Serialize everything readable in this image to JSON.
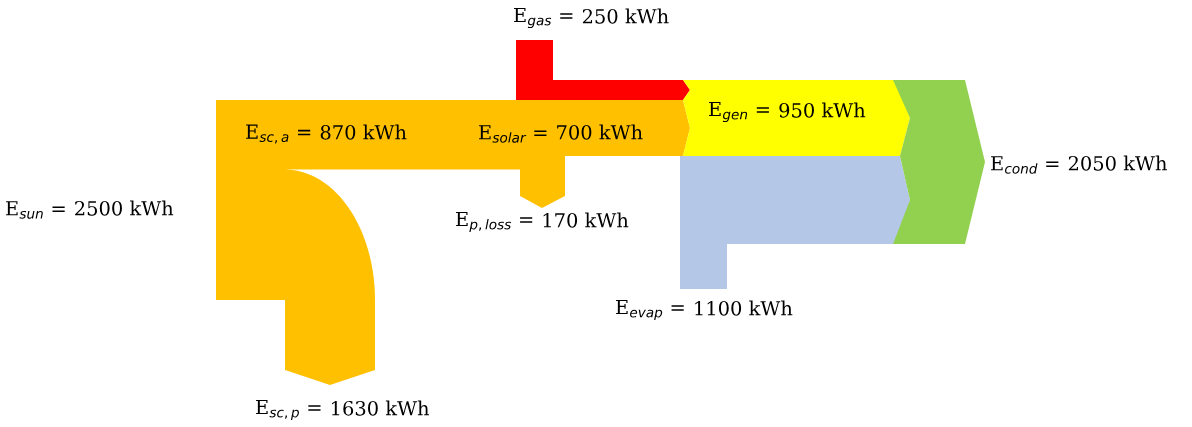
{
  "chart_data": {
    "type": "other",
    "categories": [
      "E$_{sun}$ =",
      "E$_{sc,a}$ =",
      "E$_{sc,p}$ =",
      "E$_{solar}$ =",
      "E$_{p,loss}$ =",
      "E$_{gas}$ =",
      "E$_{gen}$ =",
      "E$_{evap}$ =",
      "E$_{cond}$ ="
    ],
    "values": [
      2500,
      870,
      1630,
      700,
      170,
      250,
      950,
      1100,
      2050
    ],
    "value_labels": [
      "2500 kWh",
      "870 kWh",
      "1630 kWh",
      "700 kWh",
      "170 kWh",
      "250 kWh",
      "950 kWh",
      "1100 kWh",
      "2050 kWh"
    ],
    "colors": [
      "#ffc000",
      "#ffc000",
      "#ffc000",
      "#ffc000",
      "#ffc000",
      "#ff0000",
      "#ffff00",
      "#b4c7e7",
      "#92d050"
    ]
  }
}
